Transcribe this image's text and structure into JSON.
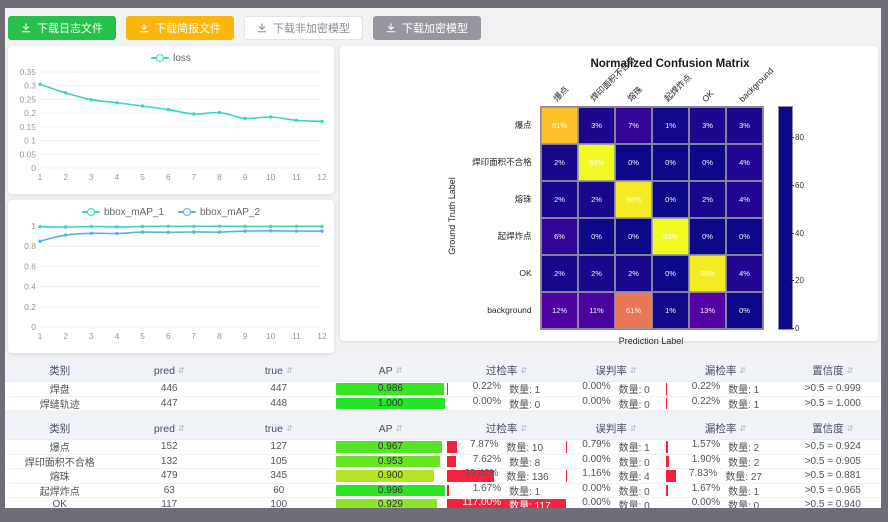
{
  "toolbar": {
    "buttons": [
      {
        "label": "下载日志文件",
        "bg": "#26c04b",
        "fg": "#ffffff",
        "border": "#26c04b"
      },
      {
        "label": "下载简报文件",
        "bg": "#fbb70d",
        "fg": "#ffffff",
        "border": "#fbb70d"
      },
      {
        "label": "下载非加密模型",
        "bg": "#ffffff",
        "fg": "#8a8a99",
        "border": "#e2e2e8"
      },
      {
        "label": "下载加密模型",
        "bg": "#98979f",
        "fg": "#ffffff",
        "border": "#98979f"
      }
    ]
  },
  "colors": {
    "teal": "#3ad6c2",
    "blue": "#5ab0e8",
    "red_bar": "#f5223d",
    "frame": "#6e6d78",
    "page_bg": "#f2f2f5"
  },
  "chart_data": [
    {
      "type": "line",
      "x": [
        1,
        2,
        3,
        4,
        5,
        6,
        7,
        8,
        9,
        10,
        11,
        12
      ],
      "series": [
        {
          "name": "loss",
          "color": "#3ad6c2",
          "values": [
            0.305,
            0.274,
            0.249,
            0.238,
            0.226,
            0.213,
            0.197,
            0.202,
            0.181,
            0.186,
            0.174,
            0.17
          ]
        }
      ],
      "ylim": [
        0,
        0.35
      ],
      "yticks": [
        0,
        0.05,
        0.1,
        0.15,
        0.2,
        0.25,
        0.3,
        0.35
      ],
      "grid": true,
      "legend_position": "top"
    },
    {
      "type": "line",
      "x": [
        1,
        2,
        3,
        4,
        5,
        6,
        7,
        8,
        9,
        10,
        11,
        12
      ],
      "series": [
        {
          "name": "bbox_mAP_1",
          "color": "#3ad6c2",
          "values": [
            0.993,
            0.99,
            0.995,
            0.991,
            0.995,
            0.997,
            0.997,
            0.998,
            0.996,
            0.996,
            0.997,
            0.997
          ]
        },
        {
          "name": "bbox_mAP_2",
          "color": "#5ab0e8",
          "values": [
            0.85,
            0.91,
            0.928,
            0.926,
            0.94,
            0.938,
            0.941,
            0.94,
            0.95,
            0.952,
            0.95,
            0.95
          ]
        }
      ],
      "ylim": [
        0,
        1
      ],
      "yticks": [
        0,
        0.2,
        0.4,
        0.6,
        0.8,
        1
      ],
      "grid": true,
      "legend_position": "top"
    },
    {
      "type": "heatmap",
      "title": "Normalized Confusion Matrix",
      "xlabel": "Prediction Label",
      "ylabel": "Ground Truth Label",
      "labels": [
        "爆点",
        "焊印面积不合格",
        "熔珠",
        "起焊炸点",
        "OK",
        "background"
      ],
      "matrix": [
        [
          81,
          3,
          7,
          1,
          3,
          3
        ],
        [
          2,
          93,
          0,
          0,
          0,
          4
        ],
        [
          2,
          2,
          90,
          0,
          2,
          4
        ],
        [
          6,
          0,
          0,
          93,
          0,
          0
        ],
        [
          2,
          2,
          2,
          0,
          90,
          4
        ],
        [
          12,
          11,
          61,
          1,
          13,
          0
        ]
      ],
      "unit": "%",
      "vmax": 93,
      "colormap": "plasma",
      "colorbar_ticks": [
        0,
        20,
        40,
        60,
        80
      ]
    }
  ],
  "tables": {
    "count_prefix": "数量:",
    "headers": [
      "类别",
      "pred",
      "true",
      "AP",
      "过检率",
      "误判率",
      "漏检率",
      "置信度"
    ],
    "sortable": [
      false,
      true,
      true,
      true,
      true,
      true,
      true,
      true
    ],
    "groups": [
      {
        "rows": [
          {
            "cat": "焊盘",
            "pred": "446",
            "true": "447",
            "ap": 0.986,
            "ap_label": "0.986",
            "over": {
              "p": 0.22,
              "label": "0.22%",
              "count": "1"
            },
            "mis": {
              "p": 0.0,
              "label": "0.00%",
              "count": "0"
            },
            "miss": {
              "p": 0.22,
              "label": "0.22%",
              "count": "1"
            },
            "conf": ">0.5 = 0.999"
          },
          {
            "cat": "焊缝轨迹",
            "pred": "447",
            "true": "448",
            "ap": 1.0,
            "ap_label": "1.000",
            "over": {
              "p": 0.0,
              "label": "0.00%",
              "count": "0"
            },
            "mis": {
              "p": 0.0,
              "label": "0.00%",
              "count": "0"
            },
            "miss": {
              "p": 0.22,
              "label": "0.22%",
              "count": "1"
            },
            "conf": ">0.5 = 1.000"
          }
        ]
      },
      {
        "rows": [
          {
            "cat": "爆点",
            "pred": "152",
            "true": "127",
            "ap": 0.967,
            "ap_label": "0.967",
            "over": {
              "p": 7.87,
              "label": "7.87%",
              "count": "10"
            },
            "mis": {
              "p": 0.79,
              "label": "0.79%",
              "count": "1"
            },
            "miss": {
              "p": 1.57,
              "label": "1.57%",
              "count": "2"
            },
            "conf": ">0.5 = 0.924"
          },
          {
            "cat": "焊印面积不合格",
            "pred": "132",
            "true": "105",
            "ap": 0.953,
            "ap_label": "0.953",
            "over": {
              "p": 7.62,
              "label": "7.62%",
              "count": "8"
            },
            "mis": {
              "p": 0.0,
              "label": "0.00%",
              "count": "0"
            },
            "miss": {
              "p": 1.9,
              "label": "1.90%",
              "count": "2"
            },
            "conf": ">0.5 = 0.905"
          },
          {
            "cat": "熔珠",
            "pred": "479",
            "true": "345",
            "ap": 0.9,
            "ap_label": "0.900",
            "over": {
              "p": 39.42,
              "label": "39.42%",
              "count": "136"
            },
            "mis": {
              "p": 1.16,
              "label": "1.16%",
              "count": "4"
            },
            "miss": {
              "p": 7.83,
              "label": "7.83%",
              "count": "27"
            },
            "conf": ">0.5 = 0.881"
          },
          {
            "cat": "起焊炸点",
            "pred": "63",
            "true": "60",
            "ap": 0.996,
            "ap_label": "0.996",
            "over": {
              "p": 1.67,
              "label": "1.67%",
              "count": "1"
            },
            "mis": {
              "p": 0.0,
              "label": "0.00%",
              "count": "0"
            },
            "miss": {
              "p": 1.67,
              "label": "1.67%",
              "count": "1"
            },
            "conf": ">0.5 = 0.965"
          },
          {
            "cat": "OK",
            "pred": "117",
            "true": "100",
            "ap": 0.929,
            "ap_label": "0.929",
            "over": {
              "p": 117.0,
              "label": "117.00%",
              "count": "117"
            },
            "mis": {
              "p": 0.0,
              "label": "0.00%",
              "count": "0"
            },
            "miss": {
              "p": 0.0,
              "label": "0.00%",
              "count": "0"
            },
            "conf": ">0.5 = 0.940"
          }
        ]
      }
    ]
  }
}
